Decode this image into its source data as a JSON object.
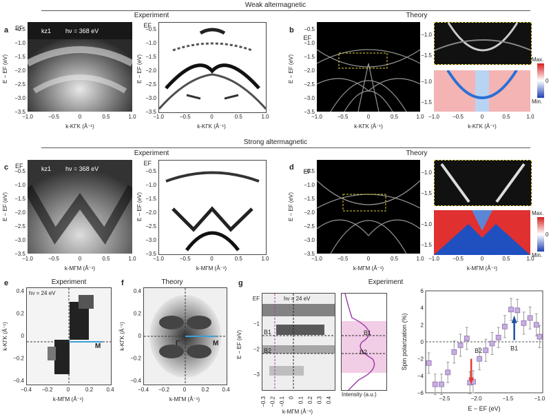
{
  "header": {
    "weak": "Weak altermagnetic",
    "strong": "Strong altermagnetic",
    "experiment": "Experiment",
    "theory": "Theory"
  },
  "panels": {
    "a": "a",
    "b": "b",
    "c": "c",
    "d": "d",
    "e": "e",
    "f": "f",
    "g": "g"
  },
  "labels": {
    "kz1": "kz1",
    "hv368": "hν = 368 eV",
    "hv24": "hν = 24 eV",
    "EF": "EF",
    "E_axis": "E − EF (eV)",
    "k_KGK": "k-KΓK (Å⁻¹)",
    "k_MGM": "k-MΓM (Å⁻¹)",
    "Gamma": "Γ",
    "M": "M",
    "B1": "B1",
    "B2": "B2",
    "max": "Max.",
    "min": "Min.",
    "zero": "0",
    "intensity": "Intensity (a.u.)",
    "spinpol": "Spin polarization (%)",
    "E_EF": "E − EF (eV)",
    "colorbar_ticks": [
      "Max.",
      "0",
      "Min."
    ]
  },
  "ticks": {
    "x_1to1": [
      "−1.0",
      "−0.5",
      "0",
      "0.5",
      "1.0"
    ],
    "x_05to1": [
      "−1.0",
      "−0.5",
      "0",
      "0.5",
      "1.0"
    ],
    "y_top": [
      "EF",
      "−0.5",
      "−1.0",
      "−1.5",
      "−2.0",
      "−2.5",
      "−3.0",
      "−3.5"
    ],
    "y_mid": [
      "EF",
      "−0.5",
      "−1.0",
      "−1.5",
      "−2.0",
      "−2.5",
      "−3.0",
      "−3.5"
    ],
    "y_inset": [
      "−1.0",
      "−1.5"
    ],
    "x_ef": [
      "−0.4",
      "−0.2",
      "0",
      "0.2",
      "0.4"
    ],
    "y_ef": [
      "0.4",
      "0.2",
      "0",
      "−0.2",
      "−0.4"
    ],
    "x_g": [
      "−0.3",
      "−0.2",
      "−0.1",
      "0",
      "0.1",
      "0.2",
      "0.3",
      "0.4"
    ],
    "y_g": [
      "EF",
      "−1",
      "−2",
      "−3"
    ],
    "x_sp": [
      "−2.5",
      "−2.0",
      "−1.5",
      "−1.0"
    ],
    "y_sp": [
      "6",
      "4",
      "2",
      "0",
      "−2",
      "−4",
      "−6"
    ]
  },
  "chart_data": {
    "type": "scatter",
    "title": "",
    "xlabel": "E − EF (eV)",
    "ylabel": "Spin polarization (%)",
    "xlim": [
      -2.8,
      -0.95
    ],
    "ylim": [
      -6,
      6
    ],
    "x": [
      -2.75,
      -2.65,
      -2.55,
      -2.45,
      -2.35,
      -2.25,
      -2.15,
      -2.1,
      -2.05,
      -1.95,
      -1.85,
      -1.75,
      -1.65,
      -1.55,
      -1.45,
      -1.35,
      -1.25,
      -1.15,
      -1.05,
      -1.0
    ],
    "values": [
      -2.5,
      -5.0,
      -5.0,
      -3.6,
      -1.2,
      -0.4,
      0.4,
      -4.8,
      -4.7,
      -2.0,
      -1.0,
      -0.2,
      0.5,
      1.8,
      3.8,
      3.7,
      2.2,
      2.8,
      2.0,
      0.6
    ],
    "err": [
      1.2,
      1.2,
      1.2,
      1.2,
      1.3,
      1.3,
      1.3,
      1.3,
      1.3,
      1.3,
      1.3,
      1.3,
      1.2,
      1.3,
      1.3,
      1.3,
      1.3,
      1.3,
      1.3,
      1.3
    ],
    "annotations": [
      {
        "text": "B2",
        "x": -2.08,
        "arrow": "down",
        "color": "#e53935"
      },
      {
        "text": "B1",
        "x": -1.4,
        "arrow": "up",
        "color": "#1e4fa3"
      }
    ],
    "marker_color": "#c7aede",
    "grid": false
  }
}
